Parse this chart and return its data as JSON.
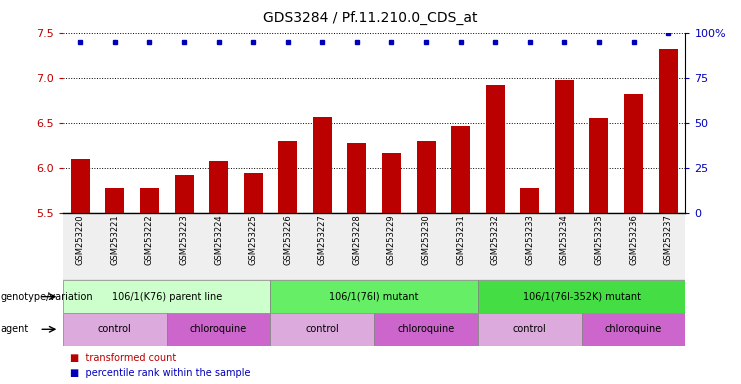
{
  "title": "GDS3284 / Pf.11.210.0_CDS_at",
  "samples": [
    "GSM253220",
    "GSM253221",
    "GSM253222",
    "GSM253223",
    "GSM253224",
    "GSM253225",
    "GSM253226",
    "GSM253227",
    "GSM253228",
    "GSM253229",
    "GSM253230",
    "GSM253231",
    "GSM253232",
    "GSM253233",
    "GSM253234",
    "GSM253235",
    "GSM253236",
    "GSM253237"
  ],
  "transformed_count": [
    6.1,
    5.78,
    5.78,
    5.92,
    6.08,
    5.95,
    6.3,
    6.57,
    6.28,
    6.17,
    6.3,
    6.46,
    6.92,
    5.78,
    6.97,
    6.55,
    6.82,
    7.32
  ],
  "percentile": [
    95,
    95,
    95,
    95,
    95,
    95,
    95,
    95,
    95,
    95,
    95,
    95,
    95,
    95,
    95,
    95,
    95,
    100
  ],
  "ylim": [
    5.5,
    7.5
  ],
  "yticks": [
    5.5,
    6.0,
    6.5,
    7.0,
    7.5
  ],
  "y2ticks": [
    0,
    25,
    50,
    75,
    100
  ],
  "bar_color": "#bb0000",
  "dot_color": "#0000bb",
  "genotype_groups": [
    {
      "label": "106/1(K76) parent line",
      "start": 0,
      "end": 6,
      "color": "#ccffcc"
    },
    {
      "label": "106/1(76I) mutant",
      "start": 6,
      "end": 12,
      "color": "#66ee66"
    },
    {
      "label": "106/1(76I-352K) mutant",
      "start": 12,
      "end": 18,
      "color": "#44dd44"
    }
  ],
  "agent_groups": [
    {
      "label": "control",
      "start": 0,
      "end": 3,
      "color": "#ddaadd"
    },
    {
      "label": "chloroquine",
      "start": 3,
      "end": 6,
      "color": "#cc66cc"
    },
    {
      "label": "control",
      "start": 6,
      "end": 9,
      "color": "#ddaadd"
    },
    {
      "label": "chloroquine",
      "start": 9,
      "end": 12,
      "color": "#cc66cc"
    },
    {
      "label": "control",
      "start": 12,
      "end": 15,
      "color": "#ddaadd"
    },
    {
      "label": "chloroquine",
      "start": 15,
      "end": 18,
      "color": "#cc66cc"
    }
  ]
}
